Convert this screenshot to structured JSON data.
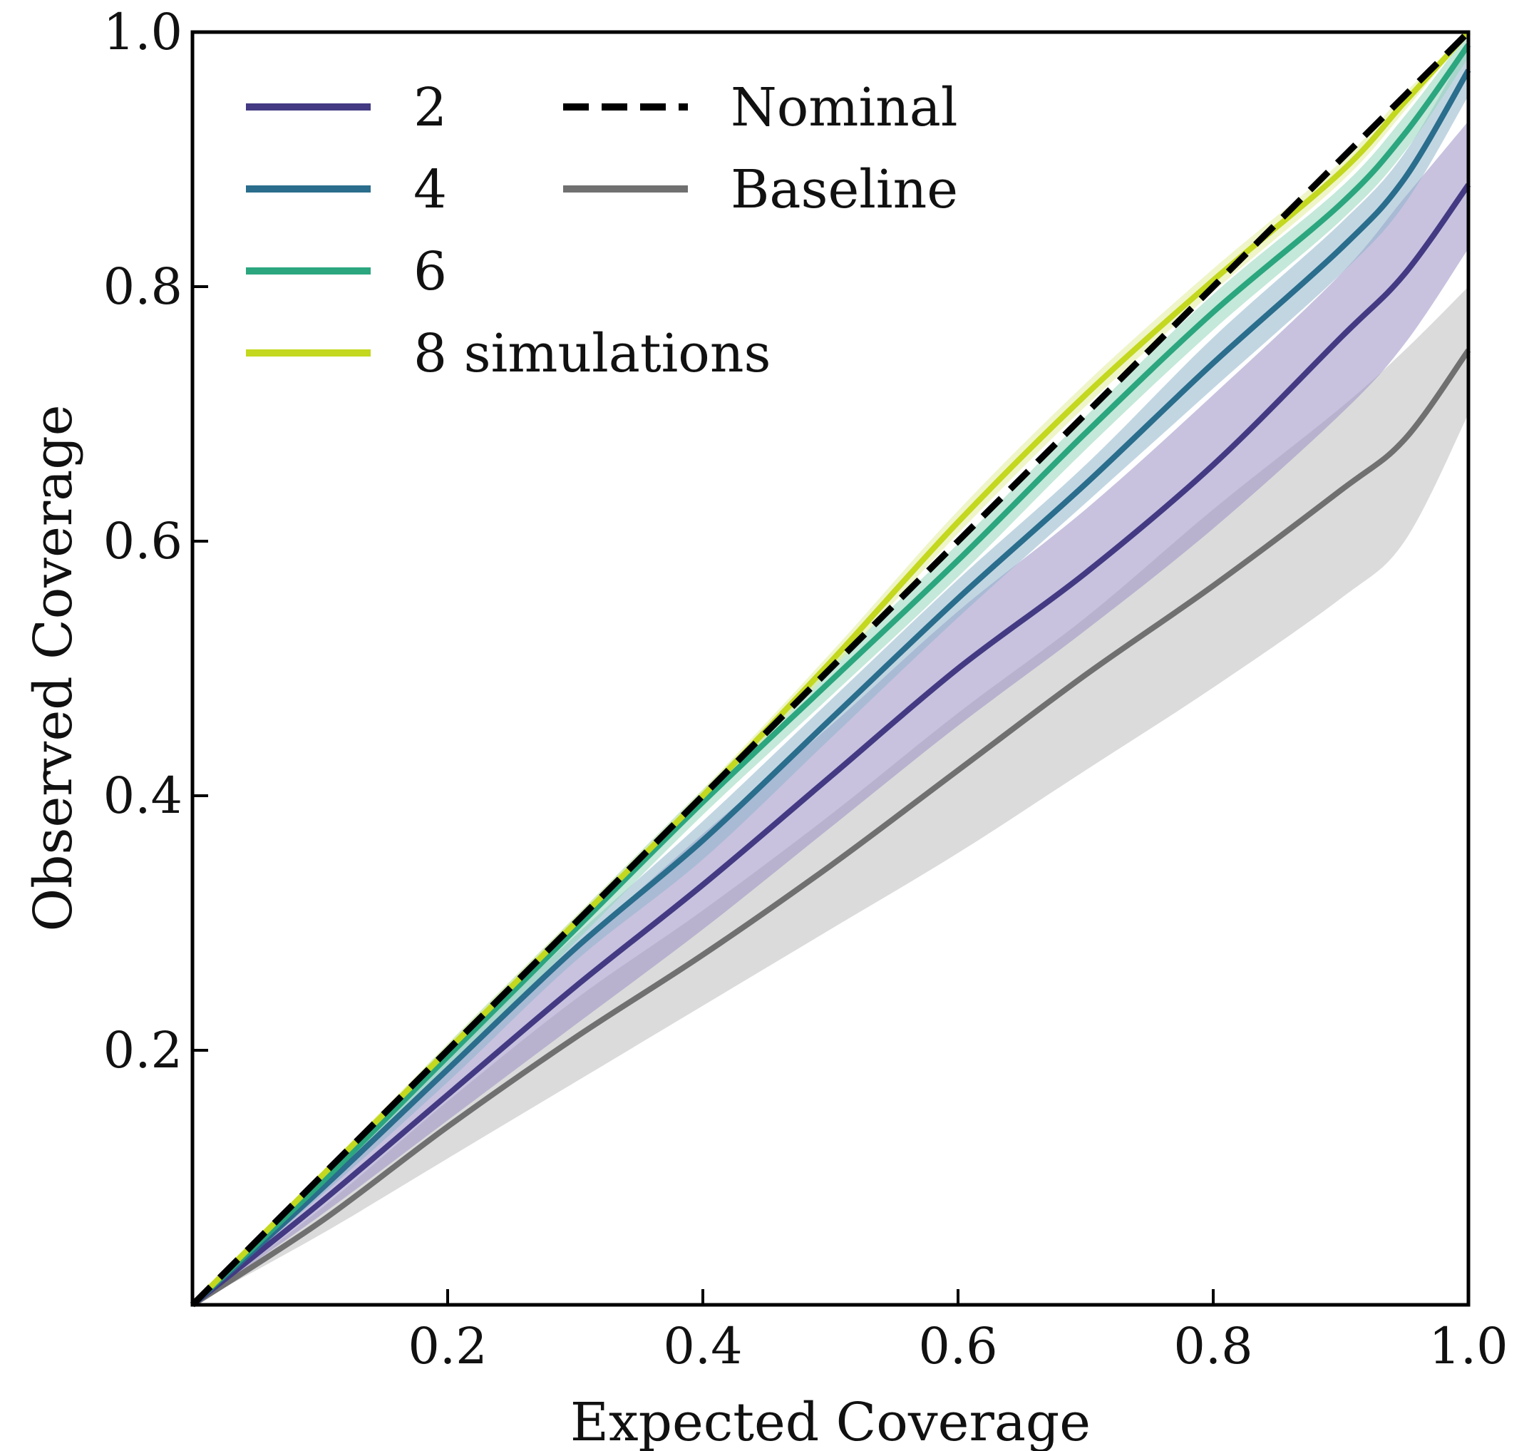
{
  "chart_data": {
    "type": "line",
    "xlabel": "Expected Coverage",
    "ylabel": "Observed Coverage",
    "xlim": [
      0,
      1
    ],
    "ylim": [
      0,
      1
    ],
    "x_ticks": [
      0.2,
      0.4,
      0.6,
      0.8,
      1.0
    ],
    "x_tick_labels": [
      "0.2",
      "0.4",
      "0.6",
      "0.8",
      "1.0"
    ],
    "y_ticks": [
      0.2,
      0.4,
      0.6,
      0.8,
      1.0
    ],
    "y_tick_labels": [
      "0.2",
      "0.4",
      "0.6",
      "0.8",
      "1.0"
    ],
    "grid": false,
    "legend_position": "top-left",
    "x": [
      0,
      0.1,
      0.2,
      0.3,
      0.4,
      0.5,
      0.6,
      0.7,
      0.8,
      0.9,
      0.95,
      1.0
    ],
    "series": [
      {
        "name": "Baseline",
        "color": "#707070",
        "band_color": "#bdbdbd",
        "values": [
          0,
          0.065,
          0.14,
          0.21,
          0.275,
          0.345,
          0.42,
          0.495,
          0.565,
          0.64,
          0.68,
          0.75
        ],
        "lower": [
          0,
          0.055,
          0.115,
          0.175,
          0.235,
          0.295,
          0.355,
          0.42,
          0.485,
          0.555,
          0.6,
          0.7
        ],
        "upper": [
          0,
          0.075,
          0.16,
          0.24,
          0.31,
          0.385,
          0.465,
          0.54,
          0.625,
          0.705,
          0.75,
          0.8
        ]
      },
      {
        "name": "2",
        "color": "#433a83",
        "band_color": "#9a8fc5",
        "values": [
          0,
          0.08,
          0.165,
          0.25,
          0.33,
          0.415,
          0.5,
          0.575,
          0.66,
          0.76,
          0.81,
          0.88
        ],
        "lower": [
          0,
          0.07,
          0.145,
          0.22,
          0.295,
          0.375,
          0.455,
          0.53,
          0.61,
          0.7,
          0.755,
          0.83
        ],
        "upper": [
          0,
          0.09,
          0.185,
          0.28,
          0.37,
          0.455,
          0.545,
          0.625,
          0.715,
          0.81,
          0.87,
          0.93
        ]
      },
      {
        "name": "4",
        "color": "#2a6d8c",
        "band_color": "#8fb4ca",
        "values": [
          0,
          0.09,
          0.185,
          0.28,
          0.365,
          0.46,
          0.555,
          0.645,
          0.74,
          0.83,
          0.885,
          0.97
        ],
        "lower": [
          0,
          0.085,
          0.175,
          0.27,
          0.35,
          0.445,
          0.54,
          0.63,
          0.72,
          0.81,
          0.865,
          0.95
        ],
        "upper": [
          0,
          0.095,
          0.195,
          0.29,
          0.38,
          0.475,
          0.57,
          0.66,
          0.76,
          0.85,
          0.905,
          0.99
        ]
      },
      {
        "name": "6",
        "color": "#2ba67e",
        "band_color": "#93d6ba",
        "values": [
          0,
          0.095,
          0.195,
          0.295,
          0.395,
          0.49,
          0.585,
          0.685,
          0.78,
          0.865,
          0.92,
          0.99
        ],
        "lower": [
          0,
          0.09,
          0.185,
          0.285,
          0.385,
          0.478,
          0.572,
          0.672,
          0.766,
          0.852,
          0.906,
          0.98
        ],
        "upper": [
          0,
          0.1,
          0.205,
          0.305,
          0.405,
          0.502,
          0.598,
          0.698,
          0.794,
          0.878,
          0.934,
          1.0
        ]
      },
      {
        "name": "8 simulations",
        "color": "#c3d81e",
        "band_color": "#e1ec9a",
        "values": [
          0,
          0.1,
          0.2,
          0.3,
          0.4,
          0.505,
          0.615,
          0.715,
          0.805,
          0.89,
          0.945,
          1.0
        ],
        "lower": [
          0,
          0.097,
          0.195,
          0.295,
          0.395,
          0.498,
          0.606,
          0.706,
          0.796,
          0.882,
          0.938,
          1.0
        ],
        "upper": [
          0,
          0.103,
          0.205,
          0.305,
          0.405,
          0.512,
          0.624,
          0.724,
          0.814,
          0.898,
          0.952,
          1.0
        ]
      },
      {
        "name": "Nominal",
        "color": "#000000",
        "dashed": true,
        "values": [
          0,
          0.1,
          0.2,
          0.3,
          0.4,
          0.5,
          0.6,
          0.7,
          0.8,
          0.9,
          0.95,
          1.0
        ]
      }
    ],
    "legend": [
      {
        "label": "2",
        "color": "#433a83",
        "dashed": false
      },
      {
        "label": "4",
        "color": "#2a6d8c",
        "dashed": false
      },
      {
        "label": "6",
        "color": "#2ba67e",
        "dashed": false
      },
      {
        "label": "8 simulations",
        "color": "#c3d81e",
        "dashed": false
      },
      {
        "label": "Nominal",
        "color": "#000000",
        "dashed": true
      },
      {
        "label": "Baseline",
        "color": "#707070",
        "dashed": false
      }
    ]
  }
}
